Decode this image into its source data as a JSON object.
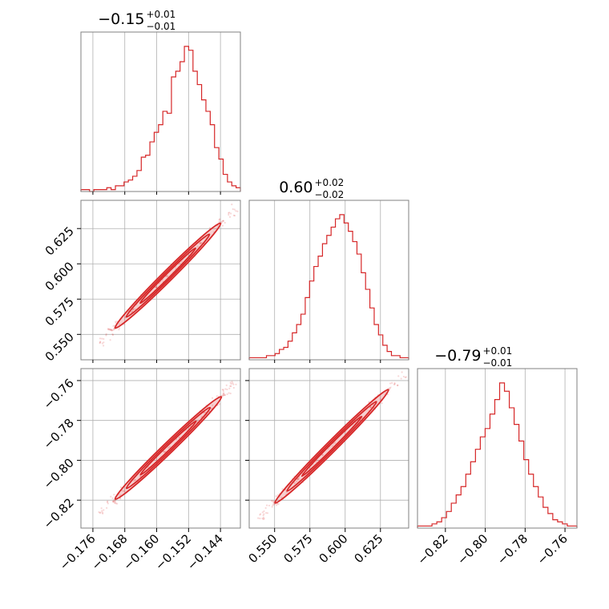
{
  "chart_data": {
    "type": "corner",
    "color": "#d62728",
    "grid": true,
    "parameters": [
      {
        "title": {
          "value": "−0.15",
          "plus": "+0.01",
          "minus": "−0.01"
        },
        "range": [
          -0.179,
          -0.139
        ],
        "ticks": [
          {
            "v": -0.176,
            "label": "−0.176"
          },
          {
            "v": -0.168,
            "label": "−0.168"
          },
          {
            "v": -0.16,
            "label": "−0.160"
          },
          {
            "v": -0.152,
            "label": "−0.152"
          },
          {
            "v": -0.144,
            "label": "−0.144"
          }
        ],
        "histogram": [
          1,
          1,
          0,
          1,
          1,
          1,
          2,
          1,
          3,
          3,
          5,
          6,
          8,
          11,
          18,
          19,
          26,
          31,
          35,
          42,
          41,
          60,
          63,
          68,
          76,
          74,
          63,
          56,
          48,
          42,
          35,
          23,
          17,
          9,
          5,
          3,
          2
        ]
      },
      {
        "title": {
          "value": "0.60",
          "plus": "+0.02",
          "minus": "−0.02"
        },
        "range": [
          0.532,
          0.645
        ],
        "ticks": [
          {
            "v": 0.55,
            "label": "0.550"
          },
          {
            "v": 0.575,
            "label": "0.575"
          },
          {
            "v": 0.6,
            "label": "0.600"
          },
          {
            "v": 0.625,
            "label": "0.625"
          }
        ],
        "histogram": [
          1,
          1,
          1,
          1,
          2,
          2,
          3,
          5,
          6,
          9,
          13,
          17,
          22,
          30,
          38,
          45,
          50,
          56,
          60,
          64,
          68,
          70,
          66,
          62,
          57,
          51,
          42,
          34,
          25,
          17,
          12,
          7,
          4,
          2,
          2,
          1,
          1
        ]
      },
      {
        "title": {
          "value": "−0.79",
          "plus": "+0.01",
          "minus": "−0.01"
        },
        "range": [
          -0.834,
          -0.754
        ],
        "ticks": [
          {
            "v": -0.82,
            "label": "−0.82"
          },
          {
            "v": -0.8,
            "label": "−0.80"
          },
          {
            "v": -0.78,
            "label": "−0.78"
          },
          {
            "v": -0.76,
            "label": "−0.76"
          }
        ],
        "histogram": [
          1,
          1,
          1,
          2,
          3,
          5,
          8,
          12,
          16,
          20,
          26,
          32,
          38,
          44,
          48,
          55,
          62,
          70,
          66,
          58,
          50,
          42,
          33,
          26,
          20,
          15,
          10,
          7,
          4,
          3,
          2,
          1,
          1
        ]
      }
    ]
  }
}
